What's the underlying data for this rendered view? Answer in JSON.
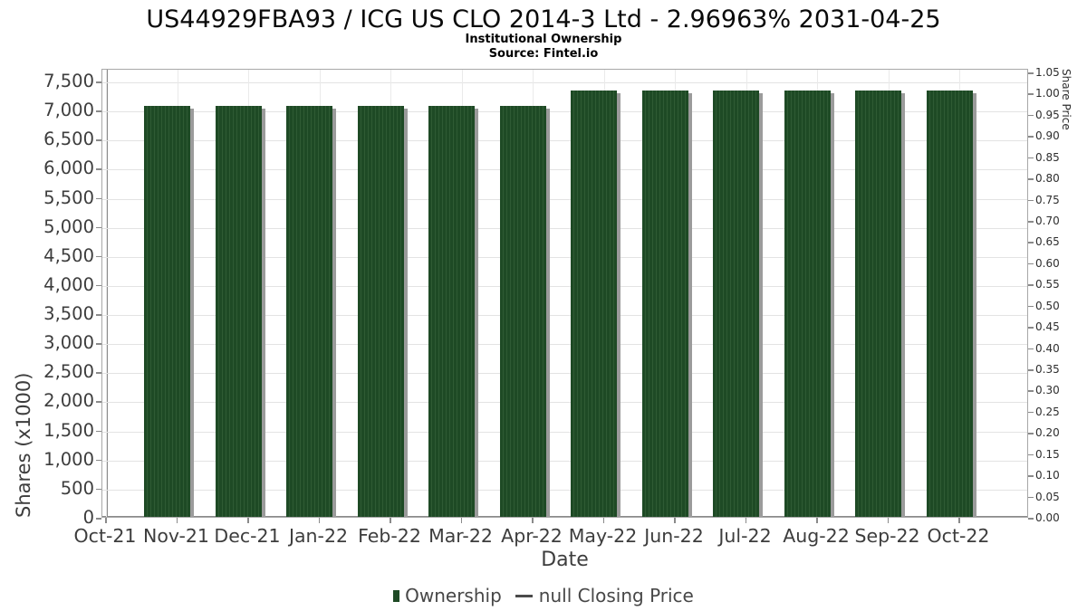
{
  "chart_data": {
    "type": "bar",
    "title": "US44929FBA93 / ICG US CLO 2014-3 Ltd - 2.96963% 2031-04-25",
    "subtitle": "Institutional Ownership",
    "source": "Source: Fintel.io",
    "categories": [
      "Nov-21",
      "Dec-21",
      "Jan-22",
      "Feb-22",
      "Mar-22",
      "Apr-22",
      "May-22",
      "Jun-22",
      "Jul-22",
      "Aug-22",
      "Sep-22",
      "Oct-22"
    ],
    "series": [
      {
        "name": "Ownership",
        "type": "bar",
        "values": [
          7070,
          7070,
          7070,
          7070,
          7070,
          7070,
          7330,
          7330,
          7330,
          7330,
          7330,
          7330
        ]
      },
      {
        "name": "null Closing Price",
        "type": "line",
        "values": null
      }
    ],
    "x_axis": {
      "label": "Date",
      "tick_labels": [
        "Oct-21",
        "Nov-21",
        "Dec-21",
        "Jan-22",
        "Feb-22",
        "Mar-22",
        "Apr-22",
        "May-22",
        "Jun-22",
        "Jul-22",
        "Aug-22",
        "Sep-22",
        "Oct-22"
      ]
    },
    "y_axis_left": {
      "label": "Shares (x1000)",
      "min": 0,
      "max": 7500,
      "step": 500
    },
    "y_axis_right": {
      "label": "Share Price",
      "min": 0,
      "max": 1.05,
      "step": 0.05
    },
    "legend": {
      "position": "bottom",
      "items": [
        {
          "label": "Ownership",
          "marker": "square"
        },
        {
          "label": "null Closing Price",
          "marker": "dash"
        }
      ]
    },
    "grid": true,
    "colors": {
      "bar": "#1E4A25",
      "bar_hatch": "#2F5B34",
      "bar_shadow": "#9B9B9B",
      "grid_h": "#E3E3E3",
      "grid_v": "#EAEAEA",
      "axis": "#8A8A8A",
      "text": "#3D3D3D",
      "legend_dash": "#4A4A4A"
    }
  }
}
